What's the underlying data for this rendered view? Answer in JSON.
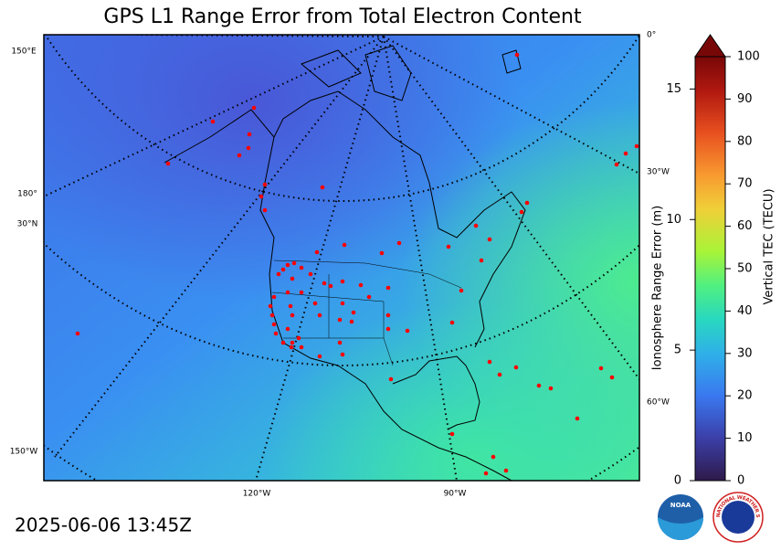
{
  "title": "GPS L1 Range Error from Total Electron Content",
  "timestamp": "2025-06-06 13:45Z",
  "map": {
    "lat_labels": [
      "150°E",
      "180°",
      "30°N",
      "150°W"
    ],
    "right_labels": [
      "0°",
      "30°W",
      "60°W"
    ],
    "bottom_labels": [
      "120°W",
      "90°W"
    ]
  },
  "colorbar": {
    "left_label": "Ionosphere Range Error (m)",
    "left_lim": [
      0,
      16.24
    ],
    "left_ticks": [
      0,
      5,
      10,
      15
    ],
    "right_label": "Vertical TEC (TECU)",
    "right_lim": [
      0,
      100
    ],
    "right_ticks": [
      0,
      10,
      20,
      30,
      40,
      50,
      60,
      70,
      80,
      90,
      100
    ]
  },
  "logos": {
    "noaa": "NOAA",
    "nws": "NATIONAL WEATHER SERVICE"
  }
}
